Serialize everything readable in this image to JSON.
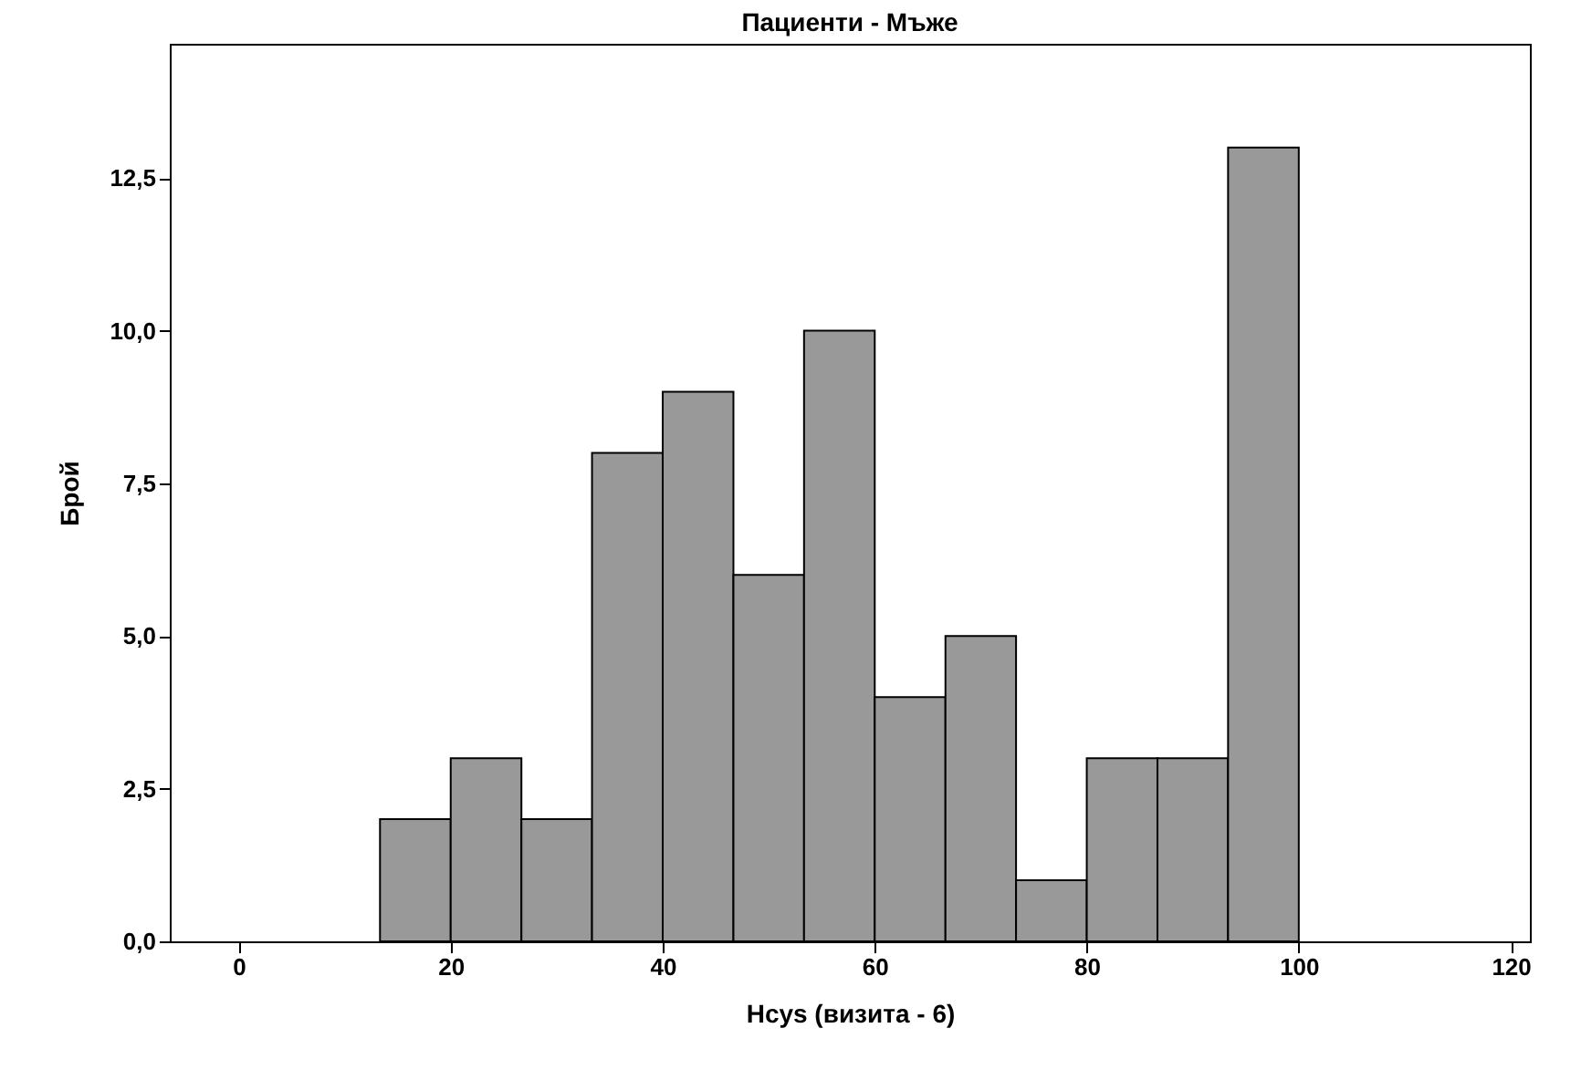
{
  "chart_data": {
    "type": "histogram",
    "title": "Пациенти - Мъже",
    "xlabel": "Hcys (визита - 6)",
    "ylabel": "Брой",
    "bins": [
      13.33,
      20,
      26.67,
      33.33,
      40,
      46.67,
      53.33,
      60,
      66.67,
      73.33,
      80,
      86.67,
      93.33,
      100
    ],
    "values": [
      2,
      3,
      2,
      8,
      9,
      6,
      10,
      4,
      5,
      1,
      3,
      3,
      13
    ],
    "color": "#999999",
    "xlim": [
      -6.5,
      121.8
    ],
    "xticks": [
      0,
      20,
      40,
      60,
      80,
      100,
      120
    ],
    "ylim": [
      0,
      14.7
    ],
    "yticks": [
      {
        "value": 0,
        "label": "0,0"
      },
      {
        "value": 2.5,
        "label": "2,5"
      },
      {
        "value": 5,
        "label": "5,0"
      },
      {
        "value": 7.5,
        "label": "7,5"
      },
      {
        "value": 10,
        "label": "10,0"
      },
      {
        "value": 12.5,
        "label": "12,5"
      }
    ],
    "grid": false
  }
}
